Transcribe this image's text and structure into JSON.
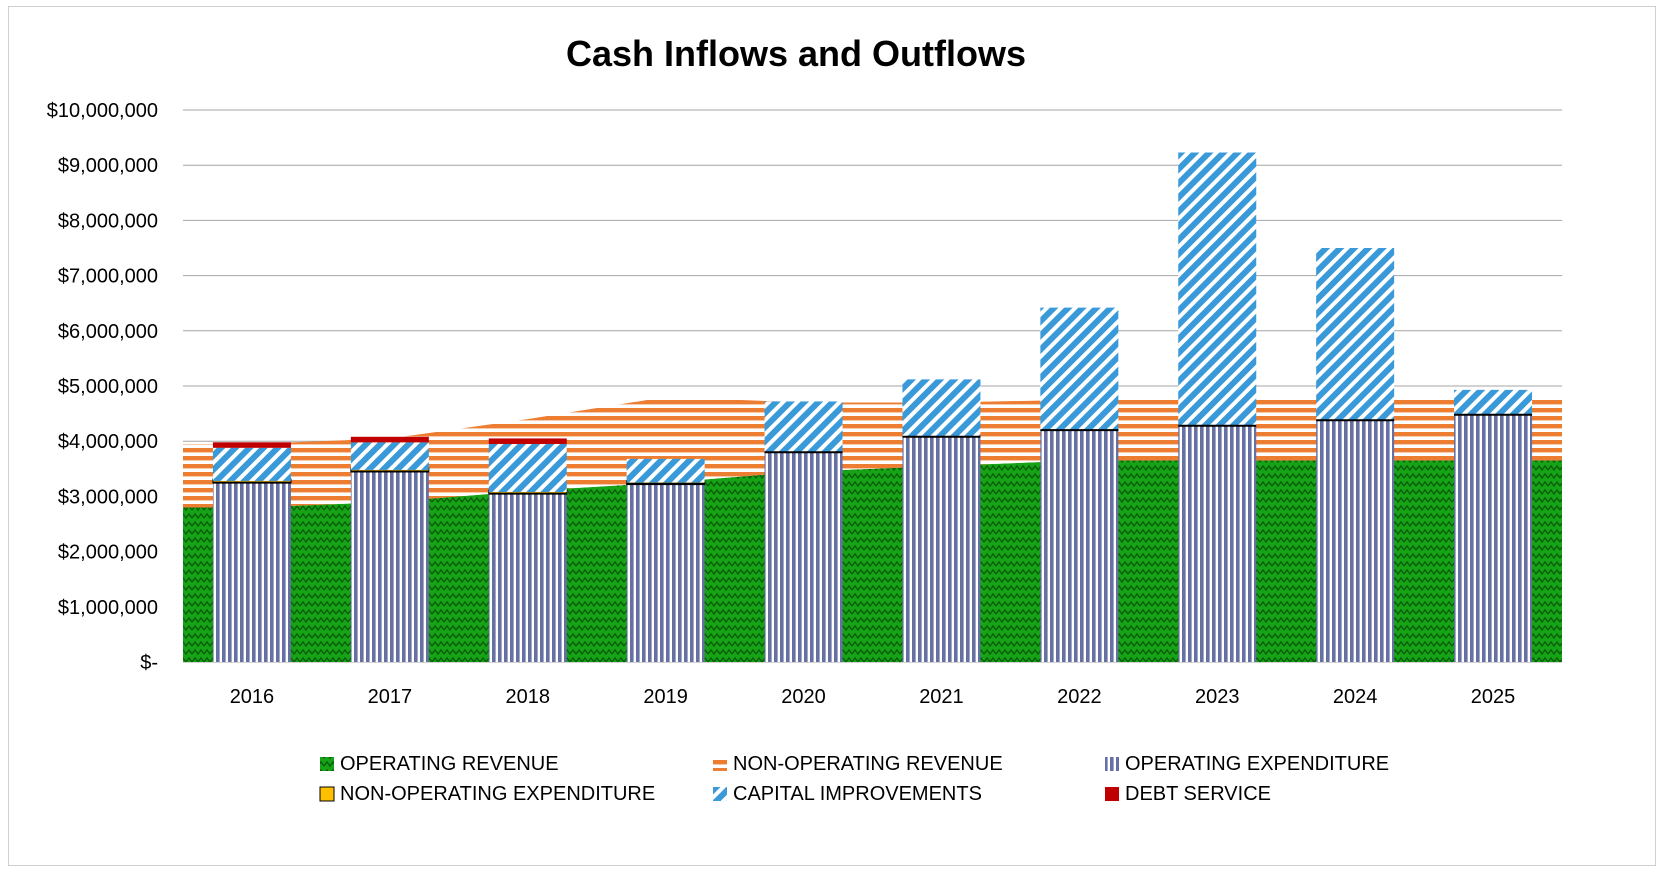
{
  "chart_data": {
    "type": "bar",
    "title": "Cash Inflows and Outflows",
    "categories": [
      "2016",
      "2017",
      "2018",
      "2019",
      "2020",
      "2021",
      "2022",
      "2023",
      "2024",
      "2025"
    ],
    "y_tick_labels": [
      "$-",
      "$1,000,000",
      "$2,000,000",
      "$3,000,000",
      "$4,000,000",
      "$5,000,000",
      "$6,000,000",
      "$7,000,000",
      "$8,000,000",
      "$9,000,000",
      "$10,000,000"
    ],
    "ylim": [
      0,
      10000000
    ],
    "grid": true,
    "legend_position": "bottom",
    "area_series": [
      {
        "name": "OPERATING REVENUE",
        "color": "#1f9e1f",
        "pattern": "zigzag",
        "values": [
          2800000,
          2900000,
          3100000,
          3250000,
          3450000,
          3550000,
          3650000,
          3650000,
          3650000,
          3650000
        ]
      },
      {
        "name": "NON-OPERATING REVENUE",
        "color": "#ed7d31",
        "pattern": "horizontal",
        "values": [
          1150000,
          1150000,
          1300000,
          1550000,
          1250000,
          1150000,
          1100000,
          1150000,
          1150000,
          1150000
        ]
      }
    ],
    "bar_series": [
      {
        "name": "OPERATING EXPENDITURE",
        "color": "#6b6fa6",
        "pattern": "vertical",
        "values": [
          3250000,
          3450000,
          3050000,
          3230000,
          3800000,
          4080000,
          4200000,
          4280000,
          4380000,
          4480000
        ]
      },
      {
        "name": "NON-OPERATING EXPENDITURE",
        "color": "#ffc000",
        "pattern": "solid",
        "values": [
          30000,
          30000,
          30000,
          20000,
          0,
          0,
          0,
          0,
          0,
          0
        ]
      },
      {
        "name": "CAPITAL IMPROVEMENTS",
        "color": "#3a9ad9",
        "pattern": "diagonal",
        "values": [
          600000,
          500000,
          870000,
          430000,
          920000,
          1040000,
          2220000,
          4950000,
          3120000,
          450000
        ]
      },
      {
        "name": "DEBT SERVICE",
        "color": "#c00000",
        "pattern": "solid",
        "values": [
          100000,
          100000,
          100000,
          0,
          0,
          0,
          0,
          0,
          0,
          0
        ]
      }
    ],
    "legend": [
      "OPERATING REVENUE",
      "NON-OPERATING REVENUE",
      "OPERATING EXPENDITURE",
      "NON-OPERATING EXPENDITURE",
      "CAPITAL IMPROVEMENTS",
      "DEBT SERVICE"
    ]
  }
}
